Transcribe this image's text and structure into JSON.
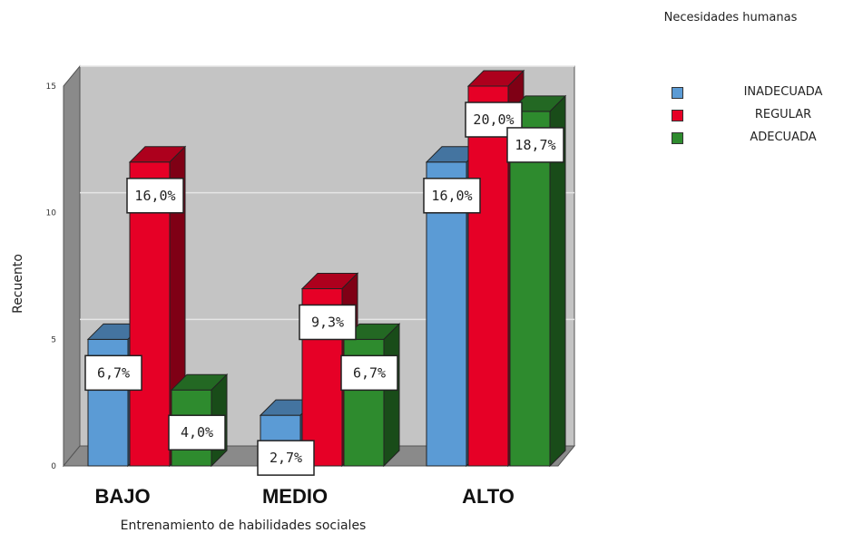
{
  "chart_data": {
    "type": "bar",
    "xlabel": "Entrenamiento de habilidades sociales",
    "ylabel": "Recuento",
    "categories": [
      "BAJO",
      "MEDIO",
      "ALTO"
    ],
    "ylim": [
      0,
      15
    ],
    "yticks": [
      0,
      5,
      10,
      15
    ],
    "grid": true,
    "legend_position": "top-right",
    "legend_title": "Necesidades humanas",
    "series": [
      {
        "name": "INADECUADA",
        "color": "#5b9bd5",
        "values": [
          5,
          2,
          12
        ],
        "labels": [
          "6,7%",
          "2,7%",
          "16,0%"
        ]
      },
      {
        "name": "REGULAR",
        "color": "#e60026",
        "values": [
          12,
          7,
          15
        ],
        "labels": [
          "16,0%",
          "9,3%",
          "20,0%"
        ]
      },
      {
        "name": "ADECUADA",
        "color": "#2e8b2e",
        "values": [
          3,
          5,
          14
        ],
        "labels": [
          "4,0%",
          "6,7%",
          "18,7%"
        ]
      }
    ]
  }
}
